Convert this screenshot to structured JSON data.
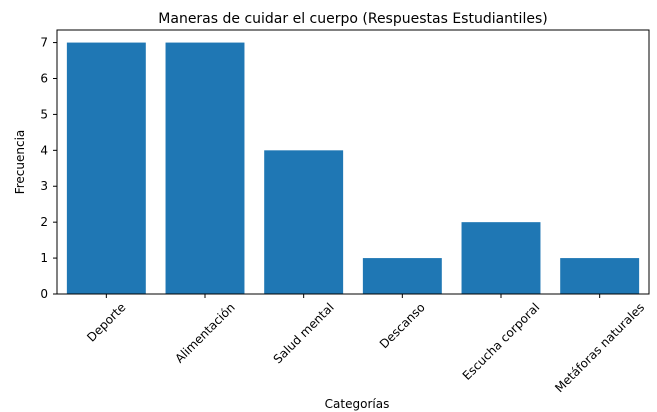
{
  "chart_data": {
    "type": "bar",
    "title": "Maneras de cuidar el cuerpo (Respuestas Estudiantiles)",
    "xlabel": "Categorías",
    "ylabel": "Frecuencia",
    "categories": [
      "Deporte",
      "Alimentación",
      "Salud mental",
      "Descanso",
      "Escucha corporal",
      "Metáforas naturales"
    ],
    "values": [
      7,
      7,
      4,
      1,
      2,
      1
    ],
    "color": "#1f77b4",
    "ylim": [
      0,
      7.35
    ],
    "yticks": [
      0,
      1,
      2,
      3,
      4,
      5,
      6,
      7
    ],
    "grid": false
  }
}
